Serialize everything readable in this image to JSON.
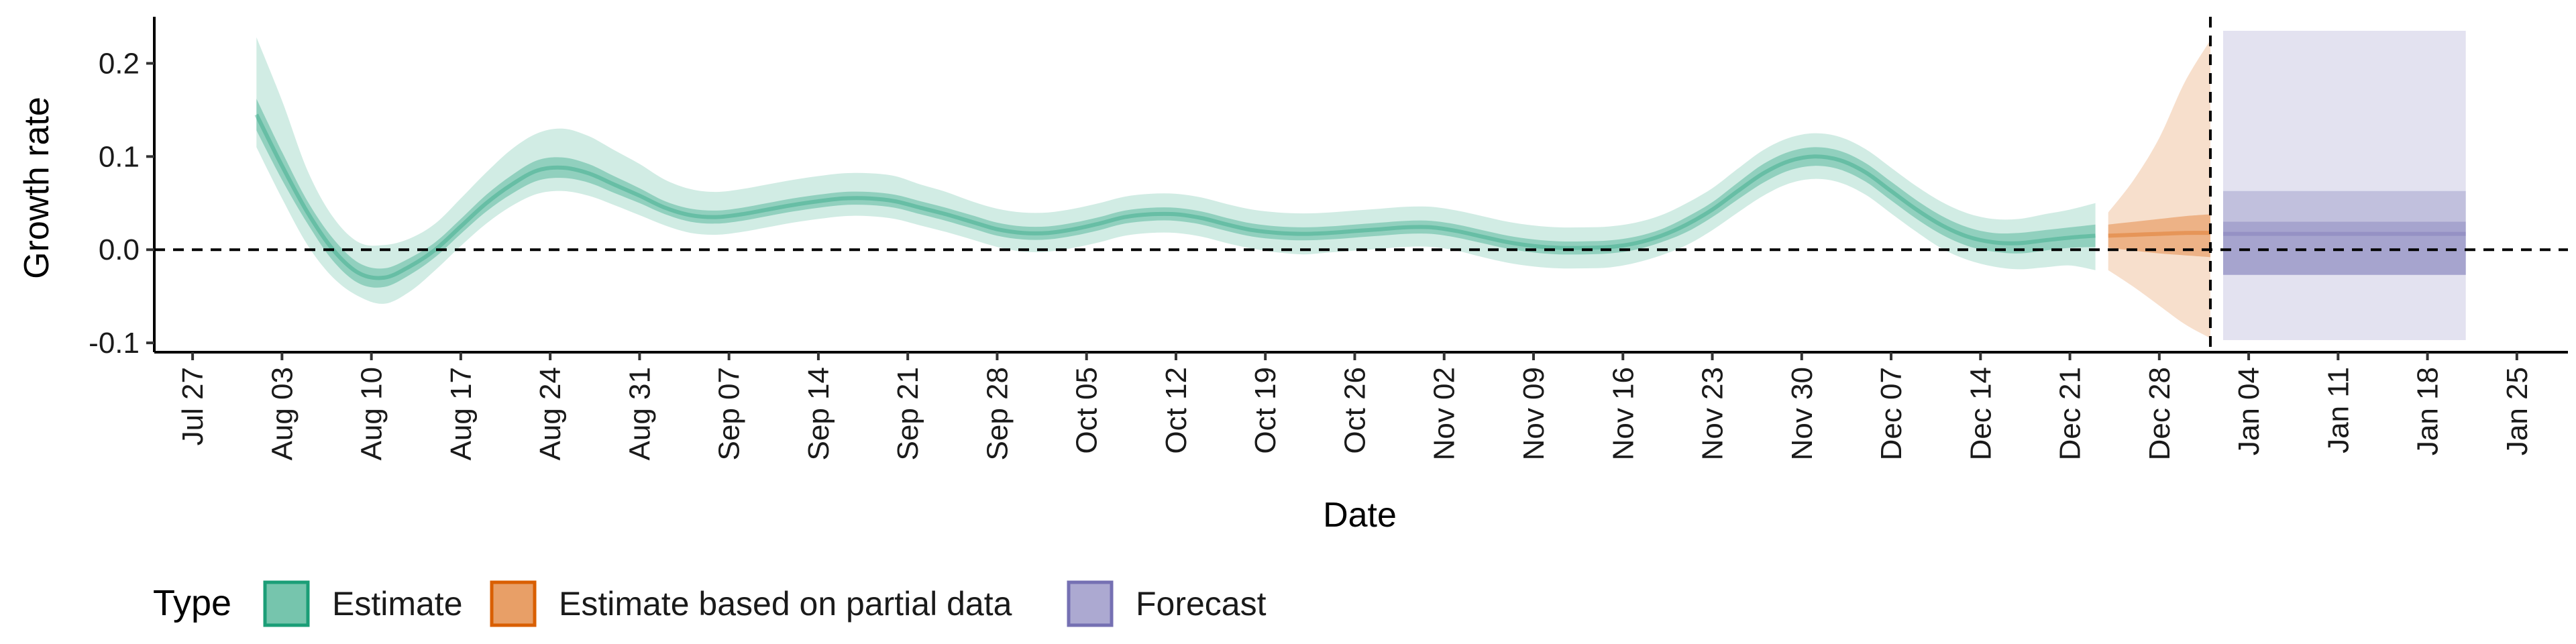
{
  "chart_data": {
    "type": "area",
    "xlabel": "Date",
    "ylabel": "Growth rate",
    "xlim": [
      "2020-07-24",
      "2021-01-29"
    ],
    "ylim": [
      -0.11,
      0.25
    ],
    "grid": false,
    "legend_position": "bottom-left",
    "colors": {
      "Estimate": "#1b9e77",
      "Estimate based on partial data": "#d95f02",
      "Forecast": "#7570b3"
    },
    "x_ticks": [
      {
        "date": "2020-07-27",
        "label": "Jul 27"
      },
      {
        "date": "2020-08-03",
        "label": "Aug 03"
      },
      {
        "date": "2020-08-10",
        "label": "Aug 10"
      },
      {
        "date": "2020-08-17",
        "label": "Aug 17"
      },
      {
        "date": "2020-08-24",
        "label": "Aug 24"
      },
      {
        "date": "2020-08-31",
        "label": "Aug 31"
      },
      {
        "date": "2020-09-07",
        "label": "Sep 07"
      },
      {
        "date": "2020-09-14",
        "label": "Sep 14"
      },
      {
        "date": "2020-09-21",
        "label": "Sep 21"
      },
      {
        "date": "2020-09-28",
        "label": "Sep 28"
      },
      {
        "date": "2020-10-05",
        "label": "Oct 05"
      },
      {
        "date": "2020-10-12",
        "label": "Oct 12"
      },
      {
        "date": "2020-10-19",
        "label": "Oct 19"
      },
      {
        "date": "2020-10-26",
        "label": "Oct 26"
      },
      {
        "date": "2020-11-02",
        "label": "Nov 02"
      },
      {
        "date": "2020-11-09",
        "label": "Nov 09"
      },
      {
        "date": "2020-11-16",
        "label": "Nov 16"
      },
      {
        "date": "2020-11-23",
        "label": "Nov 23"
      },
      {
        "date": "2020-11-30",
        "label": "Nov 30"
      },
      {
        "date": "2020-12-07",
        "label": "Dec 07"
      },
      {
        "date": "2020-12-14",
        "label": "Dec 14"
      },
      {
        "date": "2020-12-21",
        "label": "Dec 21"
      },
      {
        "date": "2020-12-28",
        "label": "Dec 28"
      },
      {
        "date": "2021-01-04",
        "label": "Jan 04"
      },
      {
        "date": "2021-01-11",
        "label": "Jan 11"
      },
      {
        "date": "2021-01-18",
        "label": "Jan 18"
      },
      {
        "date": "2021-01-25",
        "label": "Jan 25"
      }
    ],
    "y_ticks": [
      {
        "value": -0.1,
        "label": "-0.1"
      },
      {
        "value": 0.0,
        "label": "0.0"
      },
      {
        "value": 0.1,
        "label": "0.1"
      },
      {
        "value": 0.2,
        "label": "0.2"
      }
    ],
    "reference_lines": {
      "horizontal_y": 0,
      "vertical_date": "2021-01-01"
    },
    "series": [
      {
        "name": "Estimate",
        "x": [
          "2020-08-01",
          "2020-08-03",
          "2020-08-05",
          "2020-08-07",
          "2020-08-09",
          "2020-08-11",
          "2020-08-13",
          "2020-08-15",
          "2020-08-17",
          "2020-08-19",
          "2020-08-21",
          "2020-08-23",
          "2020-08-25",
          "2020-08-27",
          "2020-08-29",
          "2020-08-31",
          "2020-09-02",
          "2020-09-04",
          "2020-09-06",
          "2020-09-08",
          "2020-09-10",
          "2020-09-12",
          "2020-09-14",
          "2020-09-16",
          "2020-09-18",
          "2020-09-20",
          "2020-09-22",
          "2020-09-24",
          "2020-09-26",
          "2020-09-28",
          "2020-09-30",
          "2020-10-02",
          "2020-10-04",
          "2020-10-06",
          "2020-10-08",
          "2020-10-10",
          "2020-10-12",
          "2020-10-14",
          "2020-10-16",
          "2020-10-18",
          "2020-10-20",
          "2020-10-22",
          "2020-10-24",
          "2020-10-26",
          "2020-10-28",
          "2020-10-30",
          "2020-11-01",
          "2020-11-03",
          "2020-11-05",
          "2020-11-07",
          "2020-11-09",
          "2020-11-11",
          "2020-11-13",
          "2020-11-15",
          "2020-11-17",
          "2020-11-19",
          "2020-11-21",
          "2020-11-23",
          "2020-11-25",
          "2020-11-27",
          "2020-11-29",
          "2020-12-01",
          "2020-12-03",
          "2020-12-05",
          "2020-12-07",
          "2020-12-09",
          "2020-12-11",
          "2020-12-13",
          "2020-12-15",
          "2020-12-17",
          "2020-12-19",
          "2020-12-21",
          "2020-12-23"
        ],
        "median": [
          0.145,
          0.09,
          0.04,
          0.0,
          -0.025,
          -0.03,
          -0.018,
          0.0,
          0.025,
          0.05,
          0.07,
          0.085,
          0.088,
          0.082,
          0.07,
          0.058,
          0.045,
          0.037,
          0.035,
          0.038,
          0.043,
          0.048,
          0.052,
          0.055,
          0.055,
          0.052,
          0.045,
          0.038,
          0.03,
          0.022,
          0.018,
          0.018,
          0.022,
          0.028,
          0.035,
          0.038,
          0.038,
          0.034,
          0.027,
          0.021,
          0.018,
          0.017,
          0.018,
          0.02,
          0.022,
          0.024,
          0.024,
          0.02,
          0.014,
          0.008,
          0.004,
          0.002,
          0.002,
          0.003,
          0.007,
          0.015,
          0.027,
          0.043,
          0.063,
          0.082,
          0.095,
          0.1,
          0.096,
          0.083,
          0.063,
          0.043,
          0.026,
          0.014,
          0.008,
          0.007,
          0.01,
          0.013,
          0.015
        ],
        "lower50": [
          0.128,
          0.075,
          0.028,
          -0.012,
          -0.036,
          -0.04,
          -0.027,
          -0.008,
          0.017,
          0.041,
          0.06,
          0.074,
          0.077,
          0.072,
          0.061,
          0.05,
          0.038,
          0.03,
          0.028,
          0.031,
          0.036,
          0.041,
          0.045,
          0.048,
          0.048,
          0.045,
          0.038,
          0.031,
          0.023,
          0.015,
          0.011,
          0.011,
          0.015,
          0.021,
          0.028,
          0.031,
          0.031,
          0.027,
          0.02,
          0.014,
          0.011,
          0.01,
          0.011,
          0.013,
          0.015,
          0.017,
          0.017,
          0.013,
          0.007,
          0.001,
          -0.003,
          -0.005,
          -0.005,
          -0.004,
          0.0,
          0.008,
          0.019,
          0.035,
          0.054,
          0.072,
          0.085,
          0.09,
          0.086,
          0.073,
          0.053,
          0.033,
          0.016,
          0.004,
          -0.002,
          -0.004,
          -0.001,
          0.002,
          0.003
        ],
        "upper50": [
          0.162,
          0.105,
          0.052,
          0.012,
          -0.014,
          -0.02,
          -0.009,
          0.008,
          0.033,
          0.059,
          0.08,
          0.096,
          0.099,
          0.092,
          0.079,
          0.066,
          0.052,
          0.044,
          0.042,
          0.045,
          0.05,
          0.055,
          0.059,
          0.062,
          0.062,
          0.059,
          0.052,
          0.045,
          0.037,
          0.029,
          0.025,
          0.025,
          0.029,
          0.035,
          0.042,
          0.045,
          0.045,
          0.041,
          0.034,
          0.028,
          0.025,
          0.024,
          0.025,
          0.027,
          0.029,
          0.031,
          0.031,
          0.027,
          0.021,
          0.015,
          0.011,
          0.009,
          0.009,
          0.01,
          0.014,
          0.022,
          0.035,
          0.051,
          0.072,
          0.092,
          0.105,
          0.11,
          0.106,
          0.093,
          0.073,
          0.053,
          0.036,
          0.024,
          0.018,
          0.018,
          0.021,
          0.024,
          0.027
        ],
        "lower90": [
          0.11,
          0.055,
          0.005,
          -0.03,
          -0.05,
          -0.058,
          -0.045,
          -0.022,
          0.004,
          0.028,
          0.047,
          0.06,
          0.063,
          0.058,
          0.048,
          0.037,
          0.026,
          0.018,
          0.016,
          0.019,
          0.024,
          0.029,
          0.033,
          0.036,
          0.036,
          0.033,
          0.026,
          0.019,
          0.011,
          0.003,
          -0.002,
          -0.002,
          0.002,
          0.008,
          0.015,
          0.018,
          0.018,
          0.014,
          0.007,
          0.001,
          -0.003,
          -0.005,
          -0.003,
          -0.001,
          0.001,
          0.003,
          0.003,
          -0.001,
          -0.008,
          -0.014,
          -0.018,
          -0.02,
          -0.02,
          -0.019,
          -0.014,
          -0.006,
          0.005,
          0.021,
          0.04,
          0.058,
          0.071,
          0.076,
          0.072,
          0.059,
          0.039,
          0.019,
          0.001,
          -0.011,
          -0.018,
          -0.021,
          -0.019,
          -0.017,
          -0.022
        ],
        "upper90": [
          0.228,
          0.16,
          0.085,
          0.035,
          0.008,
          0.005,
          0.012,
          0.028,
          0.055,
          0.083,
          0.108,
          0.125,
          0.13,
          0.122,
          0.107,
          0.092,
          0.075,
          0.065,
          0.062,
          0.065,
          0.07,
          0.075,
          0.079,
          0.082,
          0.082,
          0.079,
          0.07,
          0.062,
          0.052,
          0.044,
          0.04,
          0.04,
          0.044,
          0.05,
          0.057,
          0.06,
          0.06,
          0.056,
          0.049,
          0.043,
          0.04,
          0.039,
          0.04,
          0.042,
          0.044,
          0.046,
          0.046,
          0.042,
          0.036,
          0.03,
          0.026,
          0.024,
          0.024,
          0.025,
          0.029,
          0.037,
          0.05,
          0.066,
          0.087,
          0.107,
          0.12,
          0.125,
          0.121,
          0.108,
          0.088,
          0.068,
          0.051,
          0.039,
          0.033,
          0.033,
          0.038,
          0.043,
          0.05
        ]
      },
      {
        "name": "Estimate based on partial data",
        "x": [
          "2020-12-24",
          "2020-12-26",
          "2020-12-28",
          "2020-12-30",
          "2021-01-01"
        ],
        "median": [
          0.015,
          0.016,
          0.017,
          0.018,
          0.018
        ],
        "lower50": [
          0.002,
          -0.001,
          -0.004,
          -0.006,
          -0.008
        ],
        "upper50": [
          0.027,
          0.03,
          0.033,
          0.036,
          0.038
        ],
        "lower90": [
          -0.022,
          -0.04,
          -0.06,
          -0.08,
          -0.095
        ],
        "upper90": [
          0.04,
          0.075,
          0.12,
          0.18,
          0.225
        ]
      },
      {
        "name": "Forecast",
        "x": [
          "2021-01-02",
          "2021-01-21"
        ],
        "median": [
          0.017,
          0.017
        ],
        "lower50": [
          -0.027,
          -0.027
        ],
        "upper50": [
          0.03,
          0.03
        ],
        "lower75": [
          -0.027,
          -0.027
        ],
        "upper75": [
          0.063,
          0.063
        ],
        "lower90": [
          -0.097,
          -0.097
        ],
        "upper90": [
          0.235,
          0.235
        ]
      }
    ],
    "legend": {
      "title": "Type",
      "entries": [
        "Estimate",
        "Estimate based on partial data",
        "Forecast"
      ]
    }
  }
}
